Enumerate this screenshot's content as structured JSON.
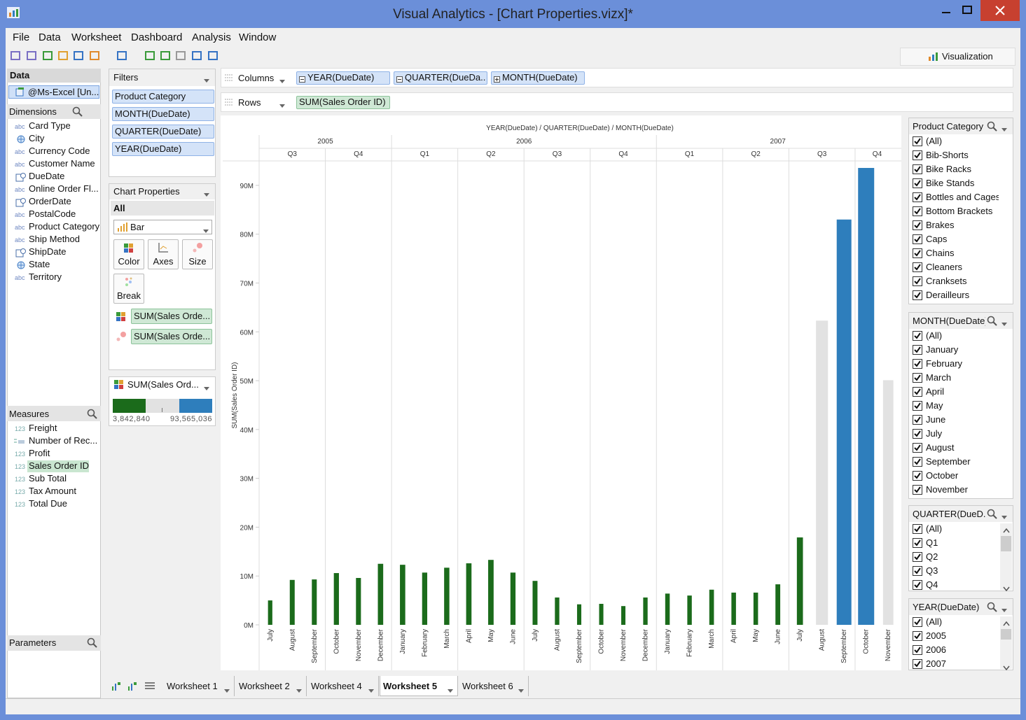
{
  "window": {
    "title": "Visual Analytics - [Chart Properties.vizx]*",
    "menu": [
      "File",
      "Data",
      "Worksheet",
      "Dashboard",
      "Analysis",
      "Window"
    ],
    "visualization_tab": "Visualization"
  },
  "data_panel": {
    "title": "Data",
    "source": "@Ms-Excel [Un...",
    "dimensions_title": "Dimensions",
    "dimensions": [
      {
        "icon": "abc",
        "name": "Card Type"
      },
      {
        "icon": "geo",
        "name": "City"
      },
      {
        "icon": "abc",
        "name": "Currency Code"
      },
      {
        "icon": "abc",
        "name": "Customer Name"
      },
      {
        "icon": "date",
        "name": "DueDate"
      },
      {
        "icon": "abc",
        "name": "Online Order Fl..."
      },
      {
        "icon": "date",
        "name": "OrderDate"
      },
      {
        "icon": "abc",
        "name": "PostalCode"
      },
      {
        "icon": "abc",
        "name": "Product Category"
      },
      {
        "icon": "abc",
        "name": "Ship Method"
      },
      {
        "icon": "date",
        "name": "ShipDate"
      },
      {
        "icon": "geo",
        "name": "State"
      },
      {
        "icon": "abc",
        "name": "Territory"
      }
    ],
    "measures_title": "Measures",
    "measures": [
      {
        "icon": "123",
        "name": "Freight"
      },
      {
        "icon": "calc",
        "name": "Number of Rec..."
      },
      {
        "icon": "123",
        "name": "Profit"
      },
      {
        "icon": "123",
        "name": "Sales Order ID",
        "selected": true
      },
      {
        "icon": "123",
        "name": "Sub Total"
      },
      {
        "icon": "123",
        "name": "Tax Amount"
      },
      {
        "icon": "123",
        "name": "Total Due"
      }
    ],
    "parameters_title": "Parameters"
  },
  "filters": {
    "title": "Filters",
    "items": [
      "Product Category",
      "MONTH(DueDate)",
      "QUARTER(DueDate)",
      "YEAR(DueDate)"
    ]
  },
  "chart_properties": {
    "title": "Chart Properties",
    "scope": "All",
    "mark_type": "Bar",
    "buttons": [
      "Color",
      "Axes",
      "Size",
      "Break"
    ],
    "encodings": [
      {
        "icon": "color",
        "field": "SUM(Sales Orde..."
      },
      {
        "icon": "size",
        "field": "SUM(Sales Orde..."
      }
    ]
  },
  "legend": {
    "title": "SUM(Sales Ord...",
    "min": {
      "value": 3842840,
      "label": "3,842,840"
    },
    "max": {
      "value": 93565036,
      "label": "93,565,036"
    },
    "colors": [
      "#1b6b1b",
      "#e2e2e2",
      "#2e7ebc"
    ]
  },
  "shelves": {
    "columns_label": "Columns",
    "columns": [
      "YEAR(DueDate)",
      "QUARTER(DueDa...",
      "MONTH(DueDate)"
    ],
    "rows_label": "Rows",
    "rows": [
      "SUM(Sales Order ID)"
    ]
  },
  "chart_data": {
    "type": "bar",
    "title": "YEAR(DueDate) / QUARTER(DueDate) / MONTH(DueDate)",
    "y_label": "SUM(Sales Order ID)",
    "ylim": [
      0,
      95000000
    ],
    "yticks": [
      {
        "value": 0,
        "label": "0M"
      },
      {
        "value": 10000000,
        "label": "10M"
      },
      {
        "value": 20000000,
        "label": "20M"
      },
      {
        "value": 30000000,
        "label": "30M"
      },
      {
        "value": 40000000,
        "label": "40M"
      },
      {
        "value": 50000000,
        "label": "50M"
      },
      {
        "value": 60000000,
        "label": "60M"
      },
      {
        "value": 70000000,
        "label": "70M"
      },
      {
        "value": 80000000,
        "label": "80M"
      },
      {
        "value": 90000000,
        "label": "90M"
      }
    ],
    "years": [
      {
        "label": "2005",
        "quarters": [
          {
            "label": "Q3",
            "months": [
              "July",
              "August",
              "September"
            ],
            "values": [
              5000000,
              9200000,
              9300000
            ]
          },
          {
            "label": "Q4",
            "months": [
              "October",
              "November",
              "December"
            ],
            "values": [
              10600000,
              9600000,
              12500000
            ]
          }
        ]
      },
      {
        "label": "2006",
        "quarters": [
          {
            "label": "Q1",
            "months": [
              "January",
              "February",
              "March"
            ],
            "values": [
              12300000,
              10700000,
              11700000
            ]
          },
          {
            "label": "Q2",
            "months": [
              "April",
              "May",
              "June"
            ],
            "values": [
              12600000,
              13300000,
              10700000
            ]
          },
          {
            "label": "Q3",
            "months": [
              "July",
              "August",
              "September"
            ],
            "values": [
              9000000,
              5600000,
              4200000
            ]
          },
          {
            "label": "Q4",
            "months": [
              "October",
              "November",
              "December"
            ],
            "values": [
              4300000,
              3842840,
              5600000
            ]
          }
        ]
      },
      {
        "label": "2007",
        "quarters": [
          {
            "label": "Q1",
            "months": [
              "January",
              "February",
              "March"
            ],
            "values": [
              6400000,
              6000000,
              7200000
            ]
          },
          {
            "label": "Q2",
            "months": [
              "April",
              "May",
              "June"
            ],
            "values": [
              6600000,
              6600000,
              8300000
            ]
          },
          {
            "label": "Q3",
            "months": [
              "July",
              "August",
              "September"
            ],
            "values": [
              17900000,
              62300000,
              83000000
            ]
          },
          {
            "label": "Q4",
            "months": [
              "October",
              "November"
            ],
            "values": [
              93565036,
              50100000
            ]
          }
        ]
      }
    ]
  },
  "filter_cards": [
    {
      "title": "Product Category",
      "checked": true,
      "items": [
        "(All)",
        "Bib-Shorts",
        "Bike Racks",
        "Bike Stands",
        "Bottles and Cages",
        "Bottom Brackets",
        "Brakes",
        "Caps",
        "Chains",
        "Cleaners",
        "Cranksets",
        "Derailleurs"
      ]
    },
    {
      "title": "MONTH(DueDate)",
      "checked": true,
      "items": [
        "(All)",
        "January",
        "February",
        "March",
        "April",
        "May",
        "June",
        "July",
        "August",
        "September",
        "October",
        "November"
      ]
    },
    {
      "title": "QUARTER(DueD...",
      "checked": true,
      "items": [
        "(All)",
        "Q1",
        "Q2",
        "Q3",
        "Q4"
      ]
    },
    {
      "title": "YEAR(DueDate)",
      "checked": true,
      "items": [
        "(All)",
        "2005",
        "2006",
        "2007"
      ]
    }
  ],
  "tabs": {
    "items": [
      "Worksheet 1",
      "Worksheet 2",
      "Worksheet 4",
      "Worksheet 5",
      "Worksheet 6"
    ],
    "active": 3
  }
}
